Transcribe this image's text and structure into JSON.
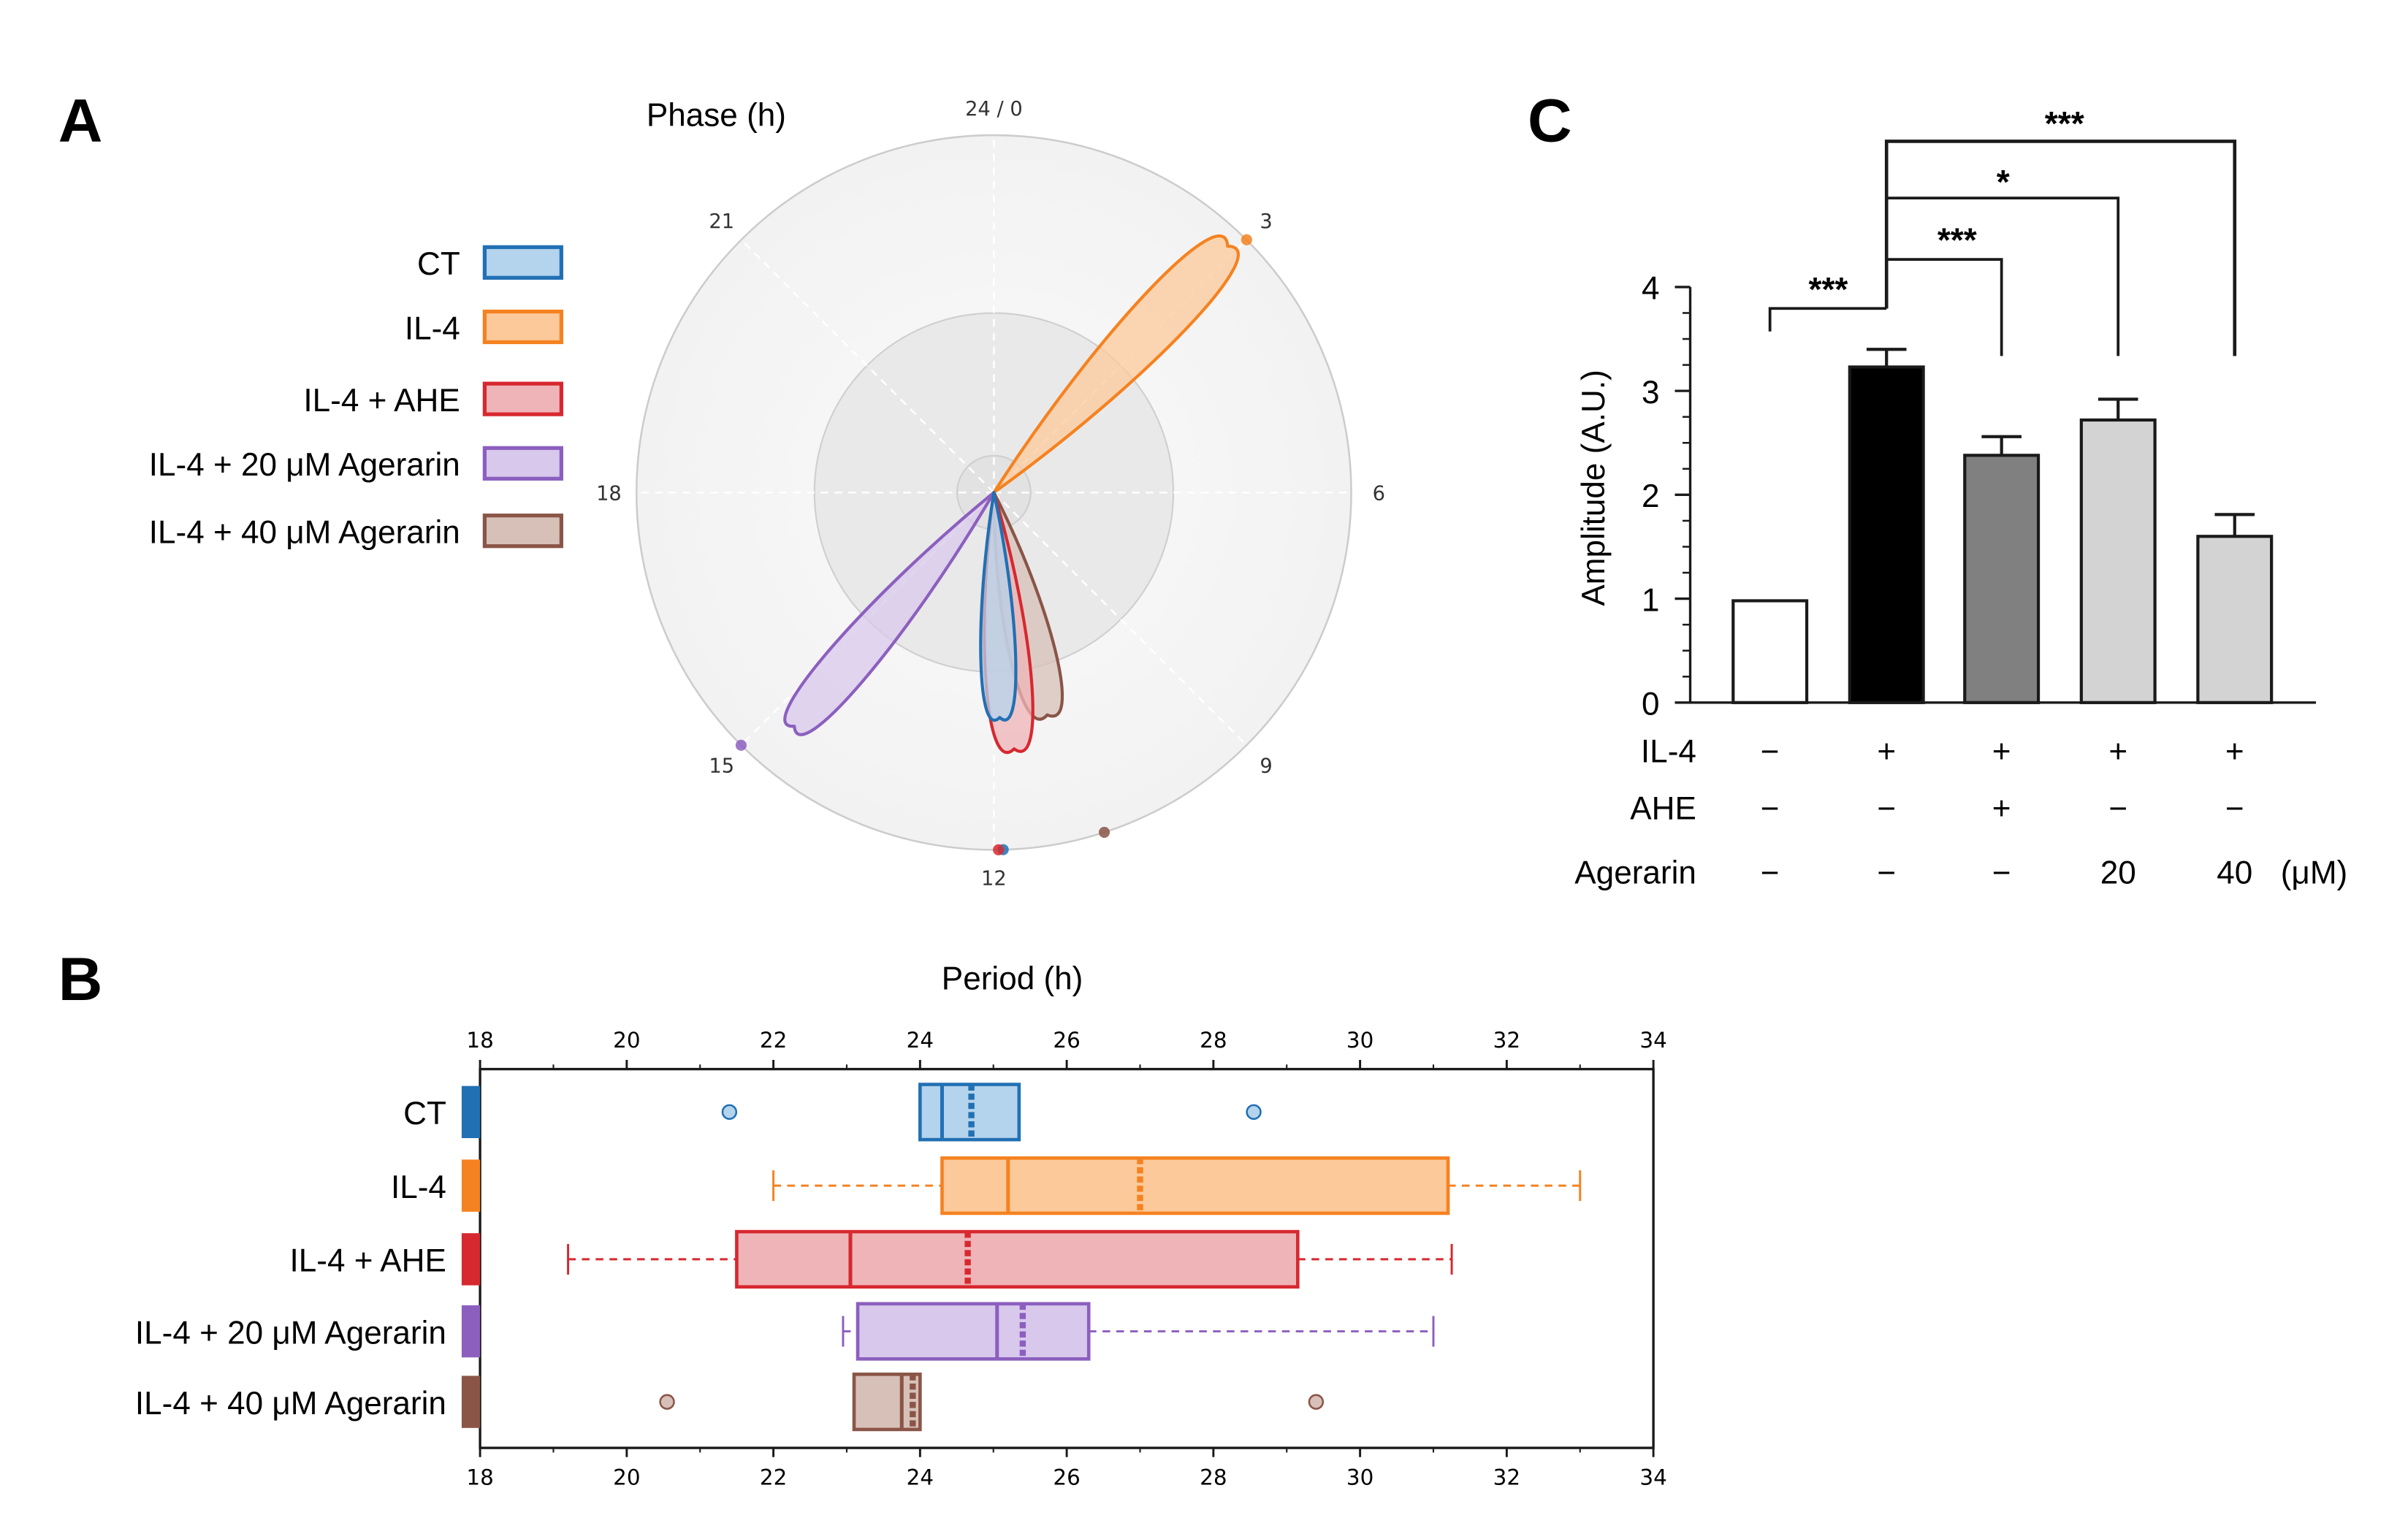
{
  "panels": {
    "a": "A",
    "b": "B",
    "c": "C"
  },
  "series_styles": [
    {
      "name": "CT",
      "stroke": "#2170b4",
      "fill": "#b4d3ec"
    },
    {
      "name": "IL-4",
      "stroke": "#f58220",
      "fill": "#fcc99b"
    },
    {
      "name": "IL-4 + AHE",
      "stroke": "#d7282f",
      "fill": "#efb4b7"
    },
    {
      "name": "IL-4 + 20 μM Agerarin",
      "stroke": "#8c5fbf",
      "fill": "#d8c8ec"
    },
    {
      "name": "IL-4 + 40 μM Agerarin",
      "stroke": "#8a5547",
      "fill": "#d7c0b8"
    }
  ],
  "chart_data": [
    {
      "id": "A",
      "type": "polar-rose",
      "title": "Phase  (h)",
      "angle_ticks": [
        {
          "value": 0,
          "label": "24 / 0"
        },
        {
          "value": 3,
          "label": "3"
        },
        {
          "value": 6,
          "label": "6"
        },
        {
          "value": 9,
          "label": "9"
        },
        {
          "value": 12,
          "label": "12"
        },
        {
          "value": 15,
          "label": "15"
        },
        {
          "value": 18,
          "label": "18"
        },
        {
          "value": 21,
          "label": "21"
        }
      ],
      "series": [
        {
          "name": "CT",
          "petal_phase_h": 11.9,
          "petal_length": 0.63,
          "petal_width": 0.065,
          "mean_phase_h": 11.9
        },
        {
          "name": "IL-4",
          "petal_phase_h": 2.9,
          "petal_length": 0.95,
          "petal_width": 0.1,
          "mean_phase_h": 3.0
        },
        {
          "name": "IL-4 + AHE",
          "petal_phase_h": 11.7,
          "petal_length": 0.72,
          "petal_width": 0.085,
          "mean_phase_h": 11.95
        },
        {
          "name": "IL-4 + 20 μM Agerarin",
          "petal_phase_h": 14.7,
          "petal_length": 0.86,
          "petal_width": 0.085,
          "mean_phase_h": 15.0
        },
        {
          "name": "IL-4 + 40 μM Agerarin",
          "petal_phase_h": 11.1,
          "petal_length": 0.64,
          "petal_width": 0.085,
          "mean_phase_h": 10.8
        }
      ]
    },
    {
      "id": "B",
      "type": "boxplot",
      "title": "Period (h)",
      "xlim": [
        18,
        34
      ],
      "ticks": [
        18,
        20,
        22,
        24,
        26,
        28,
        30,
        32,
        34
      ],
      "series": [
        {
          "name": "CT",
          "whisker_low": null,
          "q1": 24.0,
          "median": 24.3,
          "mean": 24.7,
          "q3": 25.35,
          "whisker_high": null,
          "outliers": [
            21.4,
            28.55
          ]
        },
        {
          "name": "IL-4",
          "whisker_low": 22.0,
          "q1": 24.3,
          "median": 25.2,
          "mean": 27.0,
          "q3": 31.2,
          "whisker_high": 33.0,
          "outliers": []
        },
        {
          "name": "IL-4 + AHE",
          "whisker_low": 19.2,
          "q1": 21.5,
          "median": 23.05,
          "mean": 24.65,
          "q3": 29.15,
          "whisker_high": 31.25,
          "outliers": []
        },
        {
          "name": "IL-4 + 20 μM Agerarin",
          "whisker_low": 22.95,
          "q1": 23.15,
          "median": 25.05,
          "mean": 25.4,
          "q3": 26.3,
          "whisker_high": 31.0,
          "outliers": []
        },
        {
          "name": "IL-4 + 40 μM Agerarin",
          "whisker_low": null,
          "q1": 23.1,
          "median": 23.75,
          "mean": 23.9,
          "q3": 24.0,
          "whisker_high": null,
          "outliers": [
            20.55,
            29.4
          ]
        }
      ]
    },
    {
      "id": "C",
      "type": "bar",
      "ylabel": "Amplitude  (A.U.)",
      "ylim": [
        0,
        4
      ],
      "yticks": [
        0,
        1,
        2,
        3,
        4
      ],
      "bars": [
        {
          "value": 0.98,
          "error": 0,
          "fill": "#ffffff"
        },
        {
          "value": 3.23,
          "error": 0.17,
          "fill": "#000000"
        },
        {
          "value": 2.38,
          "error": 0.18,
          "fill": "#808080"
        },
        {
          "value": 2.72,
          "error": 0.2,
          "fill": "#d3d3d3"
        },
        {
          "value": 1.6,
          "error": 0.21,
          "fill": "#d3d3d3"
        }
      ],
      "significance": [
        {
          "from": 0,
          "to": 1,
          "label": "***"
        },
        {
          "from": 1,
          "to": 2,
          "label": "***"
        },
        {
          "from": 1,
          "to": 3,
          "label": "*"
        },
        {
          "from": 1,
          "to": 4,
          "label": "***"
        }
      ],
      "conditions": [
        {
          "label": "IL-4",
          "values": [
            "−",
            "+",
            "+",
            "+",
            "+"
          ]
        },
        {
          "label": "AHE",
          "values": [
            "−",
            "−",
            "+",
            "−",
            "−"
          ]
        },
        {
          "label": "Agerarin",
          "values": [
            "−",
            "−",
            "−",
            "20",
            "40"
          ],
          "unit": "(μM)"
        }
      ]
    }
  ]
}
